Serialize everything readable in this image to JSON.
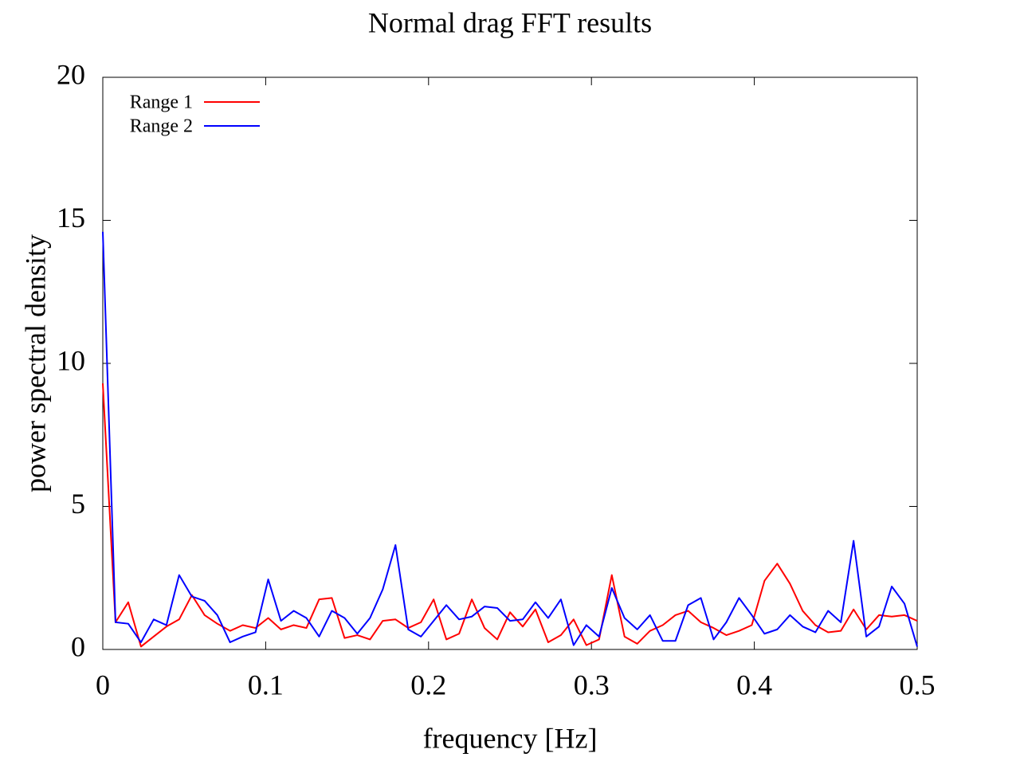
{
  "chart_data": {
    "type": "line",
    "title": "Normal drag FFT results",
    "x_label": "frequency [Hz]",
    "y_label": "power spectral density",
    "x": [
      0,
      0.0078125,
      0.015625,
      0.0234375,
      0.03125,
      0.0390625,
      0.046875,
      0.0546875,
      0.0625,
      0.0703125,
      0.078125,
      0.0859375,
      0.09375,
      0.1015625,
      0.109375,
      0.1171875,
      0.125,
      0.1328125,
      0.140625,
      0.1484375,
      0.15625,
      0.1640625,
      0.171875,
      0.1796875,
      0.1875,
      0.1953125,
      0.203125,
      0.2109375,
      0.21875,
      0.2265625,
      0.234375,
      0.2421875,
      0.25,
      0.2578125,
      0.265625,
      0.2734375,
      0.28125,
      0.2890625,
      0.296875,
      0.3046875,
      0.3125,
      0.3203125,
      0.328125,
      0.3359375,
      0.34375,
      0.3515625,
      0.359375,
      0.3671875,
      0.375,
      0.3828125,
      0.390625,
      0.3984375,
      0.40625,
      0.4140625,
      0.421875,
      0.4296875,
      0.4375,
      0.4453125,
      0.453125,
      0.4609375,
      0.46875,
      0.4765625,
      0.484375,
      0.4921875,
      0.5
    ],
    "series": [
      {
        "name": "Range 1",
        "color": "#ff0000",
        "values": [
          9.3,
          0.95,
          1.65,
          0.1,
          0.45,
          0.8,
          1.05,
          1.9,
          1.2,
          0.9,
          0.65,
          0.85,
          0.75,
          1.1,
          0.7,
          0.85,
          0.75,
          1.75,
          1.8,
          0.4,
          0.5,
          0.35,
          1.0,
          1.05,
          0.75,
          0.95,
          1.75,
          0.35,
          0.55,
          1.75,
          0.75,
          0.35,
          1.3,
          0.8,
          1.4,
          0.25,
          0.5,
          1.05,
          0.15,
          0.35,
          2.6,
          0.45,
          0.2,
          0.65,
          0.85,
          1.2,
          1.35,
          0.95,
          0.75,
          0.5,
          0.65,
          0.85,
          2.4,
          3.0,
          2.3,
          1.35,
          0.85,
          0.6,
          0.65,
          1.4,
          0.7,
          1.2,
          1.15,
          1.2,
          1.0
        ]
      },
      {
        "name": "Range 2",
        "color": "#0000ff",
        "values": [
          14.6,
          0.95,
          0.9,
          0.25,
          1.05,
          0.85,
          2.6,
          1.85,
          1.7,
          1.2,
          0.25,
          0.45,
          0.6,
          2.45,
          1.0,
          1.35,
          1.1,
          0.45,
          1.35,
          1.1,
          0.55,
          1.1,
          2.1,
          3.65,
          0.7,
          0.45,
          1.0,
          1.55,
          1.05,
          1.15,
          1.5,
          1.45,
          1.0,
          1.05,
          1.65,
          1.1,
          1.75,
          0.15,
          0.85,
          0.45,
          2.15,
          1.1,
          0.7,
          1.2,
          0.3,
          0.3,
          1.55,
          1.8,
          0.35,
          0.95,
          1.8,
          1.2,
          0.55,
          0.7,
          1.2,
          0.8,
          0.6,
          1.35,
          0.95,
          3.8,
          0.45,
          0.8,
          2.2,
          1.6,
          0.1
        ]
      }
    ],
    "xlim": [
      0,
      0.5
    ],
    "ylim": [
      0,
      20
    ],
    "xticks": [
      0,
      0.1,
      0.2,
      0.3,
      0.4,
      0.5
    ],
    "yticks": [
      0,
      5,
      10,
      15,
      20
    ],
    "legend": "top-left",
    "grid": false
  }
}
